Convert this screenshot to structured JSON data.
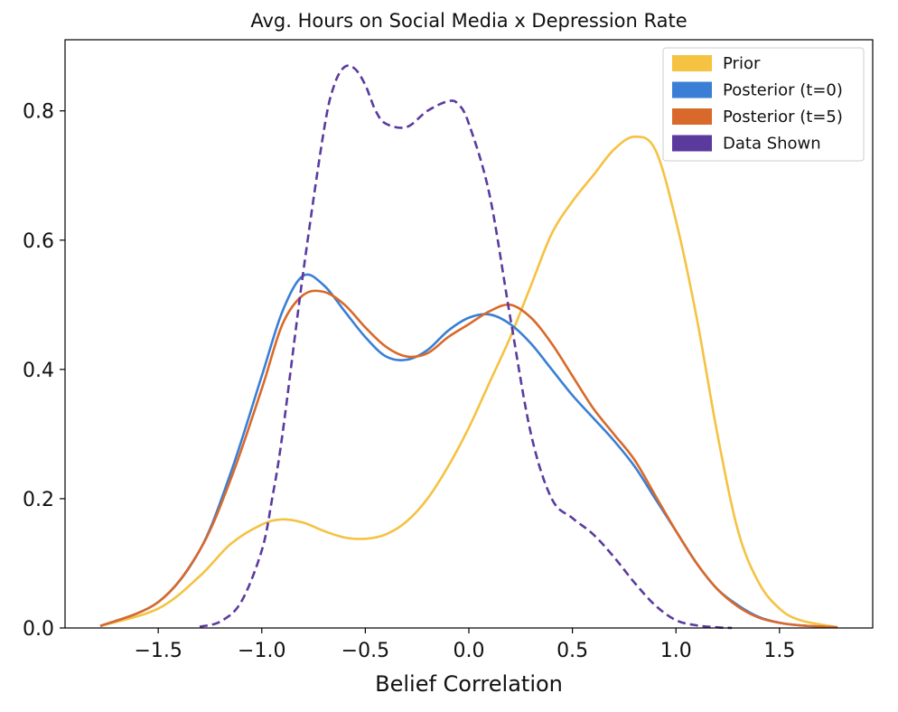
{
  "chart_data": {
    "type": "line",
    "title": "Avg. Hours on Social Media x Depression Rate",
    "xlabel": "Belief Correlation",
    "ylabel": "",
    "xlim": [
      -1.95,
      1.95
    ],
    "ylim": [
      0.0,
      0.91
    ],
    "xticks": [
      "−1.5",
      "−1.0",
      "−0.5",
      "0.0",
      "0.5",
      "1.0",
      "1.5"
    ],
    "xtick_values": [
      -1.5,
      -1.0,
      -0.5,
      0.0,
      0.5,
      1.0,
      1.5
    ],
    "yticks": [
      "0.0",
      "0.2",
      "0.4",
      "0.6",
      "0.8"
    ],
    "ytick_values": [
      0.0,
      0.2,
      0.4,
      0.6,
      0.8
    ],
    "grid": false,
    "legend_position": "top-right",
    "series": [
      {
        "name": "Prior",
        "color": "#F5C242",
        "dashed": false,
        "x": [
          -1.78,
          -1.5,
          -1.3,
          -1.15,
          -1.0,
          -0.9,
          -0.8,
          -0.7,
          -0.6,
          -0.5,
          -0.4,
          -0.3,
          -0.2,
          -0.1,
          0.0,
          0.1,
          0.2,
          0.3,
          0.4,
          0.5,
          0.6,
          0.7,
          0.8,
          0.9,
          1.0,
          1.1,
          1.2,
          1.3,
          1.4,
          1.5,
          1.6,
          1.78
        ],
        "y": [
          0.003,
          0.03,
          0.08,
          0.13,
          0.16,
          0.168,
          0.163,
          0.15,
          0.14,
          0.138,
          0.145,
          0.165,
          0.2,
          0.25,
          0.31,
          0.38,
          0.45,
          0.53,
          0.61,
          0.66,
          0.7,
          0.74,
          0.76,
          0.74,
          0.63,
          0.48,
          0.3,
          0.15,
          0.07,
          0.03,
          0.012,
          0.001
        ]
      },
      {
        "name": "Posterior (t=0)",
        "color": "#3A7FD5",
        "dashed": false,
        "x": [
          -1.78,
          -1.5,
          -1.3,
          -1.15,
          -1.0,
          -0.9,
          -0.8,
          -0.7,
          -0.6,
          -0.5,
          -0.4,
          -0.3,
          -0.2,
          -0.1,
          0.0,
          0.1,
          0.2,
          0.3,
          0.4,
          0.5,
          0.6,
          0.7,
          0.8,
          0.9,
          1.0,
          1.1,
          1.2,
          1.3,
          1.4,
          1.5,
          1.6,
          1.78
        ],
        "y": [
          0.003,
          0.04,
          0.12,
          0.24,
          0.39,
          0.49,
          0.545,
          0.53,
          0.49,
          0.45,
          0.42,
          0.415,
          0.43,
          0.46,
          0.48,
          0.485,
          0.47,
          0.44,
          0.4,
          0.36,
          0.325,
          0.29,
          0.25,
          0.2,
          0.15,
          0.1,
          0.06,
          0.035,
          0.017,
          0.008,
          0.004,
          0.001
        ]
      },
      {
        "name": "Posterior (t=5)",
        "color": "#D9692A",
        "dashed": false,
        "x": [
          -1.78,
          -1.5,
          -1.3,
          -1.15,
          -1.0,
          -0.9,
          -0.8,
          -0.7,
          -0.6,
          -0.5,
          -0.4,
          -0.3,
          -0.2,
          -0.1,
          0.0,
          0.1,
          0.2,
          0.3,
          0.4,
          0.5,
          0.6,
          0.7,
          0.8,
          0.9,
          1.0,
          1.1,
          1.2,
          1.3,
          1.4,
          1.5,
          1.6,
          1.78
        ],
        "y": [
          0.003,
          0.04,
          0.12,
          0.23,
          0.37,
          0.47,
          0.515,
          0.52,
          0.5,
          0.465,
          0.435,
          0.42,
          0.425,
          0.45,
          0.47,
          0.49,
          0.5,
          0.48,
          0.44,
          0.39,
          0.34,
          0.3,
          0.26,
          0.205,
          0.15,
          0.1,
          0.06,
          0.033,
          0.016,
          0.008,
          0.004,
          0.001
        ]
      },
      {
        "name": "Data Shown",
        "color": "#5B3A9E",
        "dashed": true,
        "x": [
          -1.3,
          -1.2,
          -1.1,
          -1.0,
          -0.95,
          -0.9,
          -0.8,
          -0.7,
          -0.65,
          -0.6,
          -0.55,
          -0.5,
          -0.45,
          -0.4,
          -0.3,
          -0.2,
          -0.1,
          -0.05,
          0.0,
          0.1,
          0.2,
          0.3,
          0.4,
          0.5,
          0.6,
          0.7,
          0.8,
          0.9,
          1.0,
          1.1,
          1.2,
          1.27
        ],
        "y": [
          0.002,
          0.01,
          0.04,
          0.12,
          0.2,
          0.3,
          0.55,
          0.77,
          0.84,
          0.868,
          0.865,
          0.84,
          0.8,
          0.78,
          0.775,
          0.8,
          0.815,
          0.81,
          0.78,
          0.67,
          0.48,
          0.3,
          0.2,
          0.17,
          0.145,
          0.11,
          0.07,
          0.035,
          0.012,
          0.004,
          0.001,
          0.0
        ]
      }
    ]
  }
}
